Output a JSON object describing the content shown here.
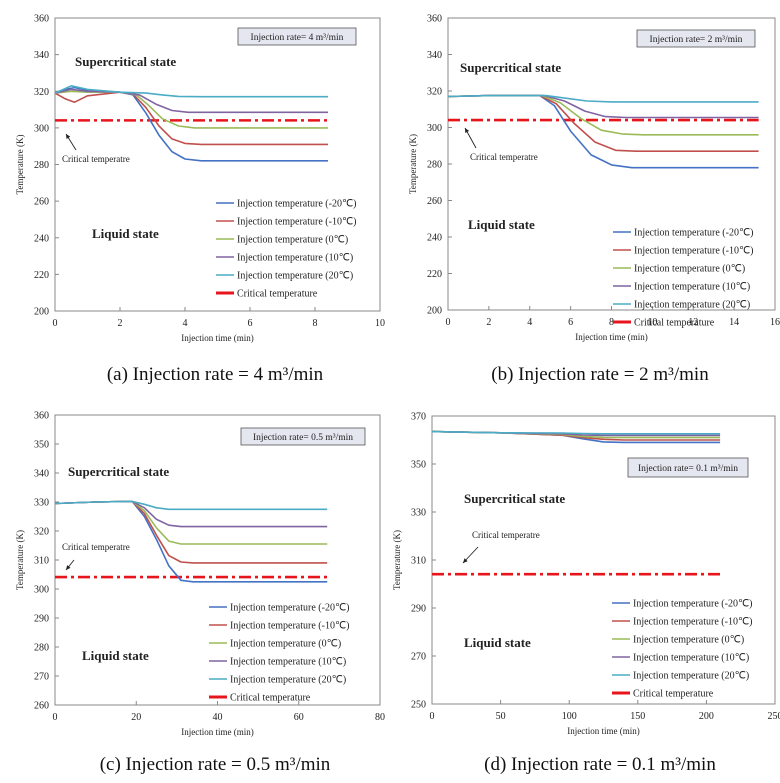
{
  "captions": {
    "a": "(a) Injection rate = 4 m³/min",
    "b": "(b) Injection rate = 2 m³/min",
    "c": "(c) Injection rate = 0.5 m³/min",
    "d": "(d) Injection rate = 0.1 m³/min"
  },
  "chart_data": [
    {
      "id": "a",
      "type": "line",
      "xlabel": "Injection time (min)",
      "ylabel": "Temperature (K)",
      "xlim": [
        0,
        10
      ],
      "ylim": [
        200,
        360
      ],
      "xticks": [
        0,
        2,
        4,
        6,
        8,
        10
      ],
      "yticks": [
        200,
        220,
        240,
        260,
        280,
        300,
        320,
        340,
        360
      ],
      "rate_label": "Injection rate= 4 m³/min",
      "supercritical_label": "Supercritical state",
      "liquid_label": "Liquid state",
      "critical_note": "Critical temperatre",
      "critical_temperature": 304.1,
      "series": [
        {
          "name": "Injection temperature (-20℃)",
          "color": "#4472C4",
          "points": [
            [
              0,
              319
            ],
            [
              0.3,
              321
            ],
            [
              0.6,
              322
            ],
            [
              1,
              320.5
            ],
            [
              2,
              319.5
            ],
            [
              2.4,
              318
            ],
            [
              2.8,
              308
            ],
            [
              3.2,
              296
            ],
            [
              3.6,
              287
            ],
            [
              4,
              283
            ],
            [
              4.5,
              282
            ],
            [
              8.4,
              282
            ]
          ]
        },
        {
          "name": "Injection temperature (-10℃)",
          "color": "#C0504D",
          "points": [
            [
              0,
              319
            ],
            [
              0.3,
              316
            ],
            [
              0.6,
              314
            ],
            [
              1,
              317.5
            ],
            [
              2,
              319.5
            ],
            [
              2.4,
              318.5
            ],
            [
              2.8,
              311
            ],
            [
              3.2,
              301
            ],
            [
              3.6,
              294
            ],
            [
              4,
              291.5
            ],
            [
              4.5,
              291
            ],
            [
              8.4,
              291
            ]
          ]
        },
        {
          "name": "Injection temperature (0℃)",
          "color": "#9BBB59",
          "points": [
            [
              0,
              319
            ],
            [
              0.5,
              320
            ],
            [
              1,
              319.5
            ],
            [
              2,
              319.5
            ],
            [
              2.5,
              318
            ],
            [
              2.9,
              312
            ],
            [
              3.3,
              305
            ],
            [
              3.8,
              301
            ],
            [
              4.3,
              300
            ],
            [
              8.4,
              300
            ]
          ]
        },
        {
          "name": "Injection temperature (10℃)",
          "color": "#8064A2",
          "points": [
            [
              0,
              319
            ],
            [
              0.5,
              321
            ],
            [
              1,
              320
            ],
            [
              2,
              319.5
            ],
            [
              2.6,
              318
            ],
            [
              3.1,
              313
            ],
            [
              3.6,
              309.5
            ],
            [
              4.1,
              308.5
            ],
            [
              8.4,
              308.5
            ]
          ]
        },
        {
          "name": "Injection temperature (20℃)",
          "color": "#4BACC6",
          "points": [
            [
              0,
              319
            ],
            [
              0.5,
              323
            ],
            [
              1,
              321
            ],
            [
              2,
              319.5
            ],
            [
              2.8,
              319
            ],
            [
              3.3,
              318
            ],
            [
              3.8,
              317.2
            ],
            [
              4.5,
              317
            ],
            [
              8.4,
              317
            ]
          ]
        }
      ],
      "critical_legend": "Critical temperature"
    },
    {
      "id": "b",
      "type": "line",
      "xlabel": "Injection time (min)",
      "ylabel": "Temperature (K)",
      "xlim": [
        0,
        16
      ],
      "ylim": [
        200,
        360
      ],
      "xticks": [
        0,
        2,
        4,
        6,
        8,
        10,
        12,
        14,
        16
      ],
      "yticks": [
        200,
        220,
        240,
        260,
        280,
        300,
        320,
        340,
        360
      ],
      "rate_label": "Injection rate= 2 m³/min",
      "supercritical_label": "Supercritical state",
      "liquid_label": "Liquid state",
      "critical_note": "Critical temperatre",
      "critical_temperature": 304.1,
      "series": [
        {
          "name": "Injection temperature (-20℃)",
          "color": "#4472C4",
          "points": [
            [
              0,
              317
            ],
            [
              2,
              317.5
            ],
            [
              4.5,
              317.5
            ],
            [
              5.2,
              312
            ],
            [
              6,
              298
            ],
            [
              7,
              285
            ],
            [
              8,
              279.5
            ],
            [
              9,
              278
            ],
            [
              15.2,
              278
            ]
          ]
        },
        {
          "name": "Injection temperature (-10℃)",
          "color": "#C0504D",
          "points": [
            [
              0,
              317
            ],
            [
              2,
              317.5
            ],
            [
              4.5,
              317.5
            ],
            [
              5.3,
              313
            ],
            [
              6.2,
              302
            ],
            [
              7.2,
              292
            ],
            [
              8.2,
              287.5
            ],
            [
              9.2,
              287
            ],
            [
              15.2,
              287
            ]
          ]
        },
        {
          "name": "Injection temperature (0℃)",
          "color": "#9BBB59",
          "points": [
            [
              0,
              317
            ],
            [
              2,
              317.5
            ],
            [
              4.6,
              317.5
            ],
            [
              5.5,
              313.5
            ],
            [
              6.5,
              305
            ],
            [
              7.5,
              298.5
            ],
            [
              8.5,
              296.5
            ],
            [
              9.5,
              296
            ],
            [
              15.2,
              296
            ]
          ]
        },
        {
          "name": "Injection temperature (10℃)",
          "color": "#8064A2",
          "points": [
            [
              0,
              317
            ],
            [
              2,
              317.5
            ],
            [
              4.7,
              317.5
            ],
            [
              5.7,
              314.5
            ],
            [
              6.7,
              309
            ],
            [
              7.7,
              306
            ],
            [
              8.7,
              305.5
            ],
            [
              15.2,
              305.5
            ]
          ]
        },
        {
          "name": "Injection temperature (20℃)",
          "color": "#4BACC6",
          "points": [
            [
              0,
              317
            ],
            [
              2,
              317.5
            ],
            [
              4.8,
              317.5
            ],
            [
              5.8,
              316
            ],
            [
              6.8,
              314.5
            ],
            [
              8,
              314
            ],
            [
              15.2,
              314
            ]
          ]
        }
      ],
      "critical_legend": "Critical temperature"
    },
    {
      "id": "c",
      "type": "line",
      "xlabel": "Injection time (min)",
      "ylabel": "Temperature (K)",
      "xlim": [
        0,
        80
      ],
      "ylim": [
        260,
        360
      ],
      "xticks": [
        0,
        20,
        40,
        60,
        80
      ],
      "yticks": [
        260,
        270,
        280,
        290,
        300,
        310,
        320,
        330,
        340,
        350,
        360
      ],
      "rate_label": "Injection rate= 0.5 m³/min",
      "supercritical_label": "Supercritical state",
      "liquid_label": "Liquid state",
      "critical_note": "Critical temperatre",
      "critical_temperature": 304.1,
      "series": [
        {
          "name": "Injection temperature (-20℃)",
          "color": "#4472C4",
          "points": [
            [
              0,
              329.5
            ],
            [
              10,
              330
            ],
            [
              19,
              330.2
            ],
            [
              22,
              325
            ],
            [
              25,
              317
            ],
            [
              28,
              308
            ],
            [
              31,
              303
            ],
            [
              34,
              302.5
            ],
            [
              67,
              302.5
            ]
          ]
        },
        {
          "name": "Injection temperature (-10℃)",
          "color": "#C0504D",
          "points": [
            [
              0,
              329.5
            ],
            [
              10,
              330
            ],
            [
              19,
              330.2
            ],
            [
              22,
              326
            ],
            [
              25,
              318.5
            ],
            [
              28,
              311.5
            ],
            [
              31,
              309.3
            ],
            [
              34,
              309
            ],
            [
              67,
              309
            ]
          ]
        },
        {
          "name": "Injection temperature (0℃)",
          "color": "#9BBB59",
          "points": [
            [
              0,
              329.5
            ],
            [
              10,
              330
            ],
            [
              19,
              330.2
            ],
            [
              22,
              327
            ],
            [
              25,
              321
            ],
            [
              28,
              316.5
            ],
            [
              31,
              315.5
            ],
            [
              67,
              315.5
            ]
          ]
        },
        {
          "name": "Injection temperature (10℃)",
          "color": "#8064A2",
          "points": [
            [
              0,
              329.5
            ],
            [
              10,
              330
            ],
            [
              19,
              330.2
            ],
            [
              22,
              328
            ],
            [
              25,
              324
            ],
            [
              28,
              322
            ],
            [
              31,
              321.5
            ],
            [
              67,
              321.5
            ]
          ]
        },
        {
          "name": "Injection temperature (20℃)",
          "color": "#4BACC6",
          "points": [
            [
              0,
              329.5
            ],
            [
              10,
              330
            ],
            [
              19,
              330.2
            ],
            [
              22,
              329.2
            ],
            [
              25,
              328
            ],
            [
              28,
              327.5
            ],
            [
              67,
              327.5
            ]
          ]
        }
      ],
      "critical_legend": "Critical temperature"
    },
    {
      "id": "d",
      "type": "line",
      "xlabel": "Injection time (min)",
      "ylabel": "Temperature (K)",
      "xlim": [
        0,
        250
      ],
      "ylim": [
        250,
        370
      ],
      "xticks": [
        0,
        50,
        100,
        150,
        200,
        250
      ],
      "yticks": [
        250,
        270,
        290,
        310,
        330,
        350,
        370
      ],
      "rate_label": "Injection rate= 0.1 m³/min",
      "supercritical_label": "Supercritical state",
      "liquid_label": "Liquid state",
      "critical_note": "Critical temperatre",
      "critical_temperature": 304.1,
      "series": [
        {
          "name": "Injection temperature (-20℃)",
          "color": "#4472C4",
          "points": [
            [
              0,
              363.5
            ],
            [
              50,
              363
            ],
            [
              95,
              362
            ],
            [
              110,
              360.5
            ],
            [
              125,
              359.2
            ],
            [
              140,
              359
            ],
            [
              210,
              359
            ]
          ]
        },
        {
          "name": "Injection temperature (-10℃)",
          "color": "#C0504D",
          "points": [
            [
              0,
              363.5
            ],
            [
              50,
              363
            ],
            [
              95,
              362
            ],
            [
              110,
              361
            ],
            [
              125,
              360.3
            ],
            [
              140,
              360
            ],
            [
              210,
              360
            ]
          ]
        },
        {
          "name": "Injection temperature (0℃)",
          "color": "#9BBB59",
          "points": [
            [
              0,
              363.5
            ],
            [
              50,
              363
            ],
            [
              95,
              362.3
            ],
            [
              110,
              361.5
            ],
            [
              125,
              361.1
            ],
            [
              140,
              361
            ],
            [
              210,
              361
            ]
          ]
        },
        {
          "name": "Injection temperature (10℃)",
          "color": "#8064A2",
          "points": [
            [
              0,
              363.5
            ],
            [
              50,
              363
            ],
            [
              95,
              362.6
            ],
            [
              110,
              362.1
            ],
            [
              125,
              361.9
            ],
            [
              210,
              361.9
            ]
          ]
        },
        {
          "name": "Injection temperature (20℃)",
          "color": "#4BACC6",
          "points": [
            [
              0,
              363.5
            ],
            [
              50,
              363
            ],
            [
              95,
              362.9
            ],
            [
              110,
              362.7
            ],
            [
              125,
              362.6
            ],
            [
              210,
              362.6
            ]
          ]
        }
      ],
      "critical_legend": "Critical temperature"
    }
  ]
}
